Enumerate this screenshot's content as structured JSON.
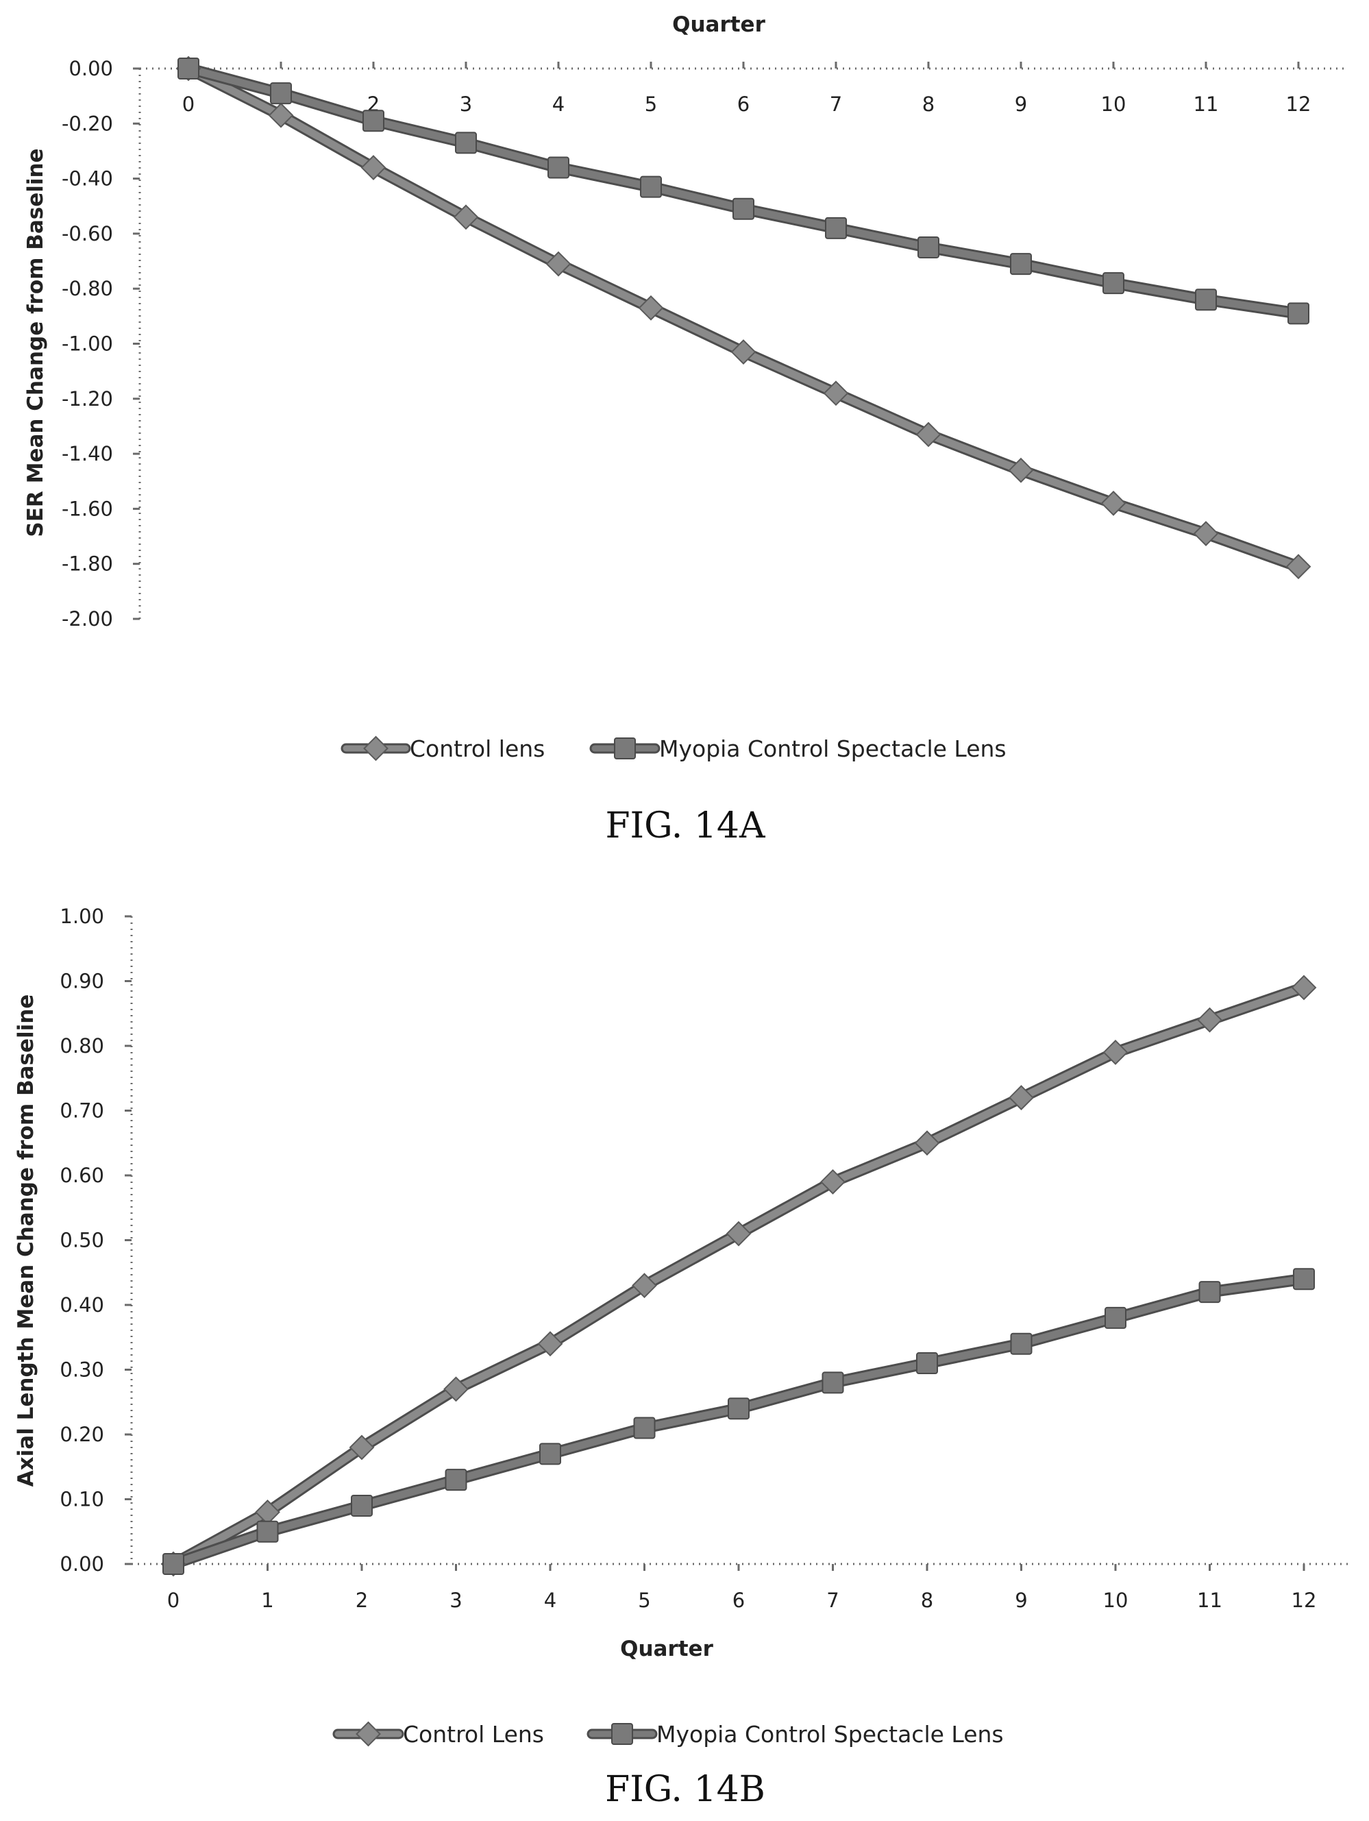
{
  "chart_data": [
    {
      "type": "line",
      "caption": "FIG. 14A",
      "xlabel": "Quarter",
      "ylabel": "SER Mean Change from Baseline",
      "x": [
        0,
        1,
        2,
        3,
        4,
        5,
        6,
        7,
        8,
        9,
        10,
        11,
        12
      ],
      "x_tick_labels": [
        "0",
        "1",
        "2",
        "3",
        "4",
        "5",
        "6",
        "7",
        "8",
        "9",
        "10",
        "11",
        "12"
      ],
      "xlim": [
        0,
        12
      ],
      "ylim": [
        -2.0,
        0.0
      ],
      "y_ticks": [
        0.0,
        -0.2,
        -0.4,
        -0.6,
        -0.8,
        -1.0,
        -1.2,
        -1.4,
        -1.6,
        -1.8,
        -2.0
      ],
      "y_tick_labels": [
        "0.00",
        "-0.20",
        "-0.40",
        "-0.60",
        "-0.80",
        "-1.00",
        "-1.20",
        "-1.40",
        "-1.60",
        "-1.80",
        "-2.00"
      ],
      "x_axis_position": "top",
      "grid": false,
      "legend_position": "bottom",
      "series": [
        {
          "name": "Control lens",
          "marker": "diamond",
          "color": "#8a8a8a",
          "values": [
            0.0,
            -0.17,
            -0.36,
            -0.54,
            -0.71,
            -0.87,
            -1.03,
            -1.18,
            -1.33,
            -1.46,
            -1.58,
            -1.69,
            -1.81
          ]
        },
        {
          "name": "Myopia Control Spectacle Lens",
          "marker": "square",
          "color": "#7a7a7a",
          "values": [
            0.0,
            -0.09,
            -0.19,
            -0.27,
            -0.36,
            -0.43,
            -0.51,
            -0.58,
            -0.65,
            -0.71,
            -0.78,
            -0.84,
            -0.89
          ]
        }
      ]
    },
    {
      "type": "line",
      "caption": "FIG. 14B",
      "xlabel": "Quarter",
      "ylabel": "Axial Length Mean Change from Baseline",
      "x": [
        0,
        1,
        2,
        3,
        4,
        5,
        6,
        7,
        8,
        9,
        10,
        11,
        12
      ],
      "x_tick_labels": [
        "0",
        "1",
        "2",
        "3",
        "4",
        "5",
        "6",
        "7",
        "8",
        "9",
        "10",
        "11",
        "12"
      ],
      "xlim": [
        0,
        12
      ],
      "ylim": [
        0.0,
        1.0
      ],
      "y_ticks": [
        0.0,
        0.1,
        0.2,
        0.3,
        0.4,
        0.5,
        0.6,
        0.7,
        0.8,
        0.9,
        1.0
      ],
      "y_tick_labels": [
        "0.00",
        "0.10",
        "0.20",
        "0.30",
        "0.40",
        "0.50",
        "0.60",
        "0.70",
        "0.80",
        "0.90",
        "1.00"
      ],
      "x_axis_position": "bottom",
      "grid": false,
      "legend_position": "bottom",
      "series": [
        {
          "name": "Control Lens",
          "marker": "diamond",
          "color": "#8a8a8a",
          "values": [
            0.0,
            0.08,
            0.18,
            0.27,
            0.34,
            0.43,
            0.51,
            0.59,
            0.65,
            0.72,
            0.79,
            0.84,
            0.89
          ]
        },
        {
          "name": "Myopia Control Spectacle Lens",
          "marker": "square",
          "color": "#7a7a7a",
          "values": [
            0.0,
            0.05,
            0.09,
            0.13,
            0.17,
            0.21,
            0.24,
            0.28,
            0.31,
            0.34,
            0.38,
            0.42,
            0.44
          ]
        }
      ]
    }
  ]
}
